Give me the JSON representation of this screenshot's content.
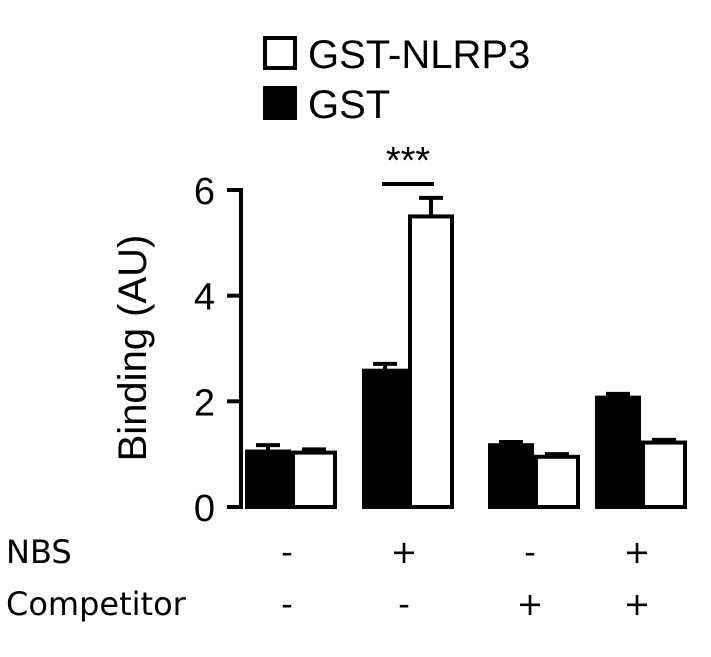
{
  "chart_data": {
    "type": "bar",
    "title": "",
    "xlabel": "",
    "ylabel": "Binding (AU)",
    "ylim": [
      0,
      6
    ],
    "yticks": [
      0,
      2,
      4,
      6
    ],
    "legend_position": "top",
    "groups": [
      {
        "NBS": "-",
        "Competitor": "-"
      },
      {
        "NBS": "+",
        "Competitor": "-"
      },
      {
        "NBS": "-",
        "Competitor": "+"
      },
      {
        "NBS": "+",
        "Competitor": "+"
      }
    ],
    "condition_rows": [
      "NBS",
      "Competitor"
    ],
    "series": [
      {
        "name": "GST",
        "fill": "#000000",
        "values": [
          1.05,
          2.58,
          1.17,
          2.07
        ],
        "errors": [
          0.12,
          0.13,
          0.06,
          0.07
        ]
      },
      {
        "name": "GST-NLRP3",
        "fill": "#ffffff",
        "values": [
          1.03,
          5.5,
          0.95,
          1.22
        ],
        "errors": [
          0.06,
          0.35,
          0.05,
          0.05
        ]
      }
    ],
    "legend_order": [
      "GST-NLRP3",
      "GST"
    ],
    "annotations": [
      {
        "text": "***",
        "group": 1,
        "span": "between-series"
      }
    ]
  }
}
